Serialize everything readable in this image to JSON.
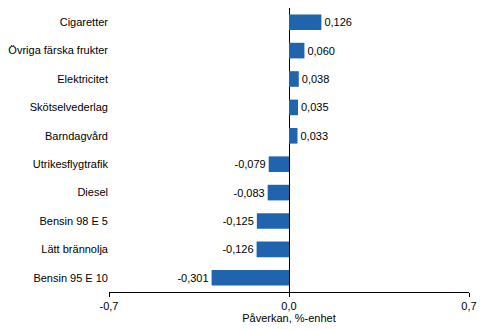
{
  "chart_data": {
    "type": "bar",
    "orientation": "horizontal",
    "x_label": "Påverkan, %-enhet",
    "categories": [
      "Cigaretter",
      "Övriga färska frukter",
      "Elektricitet",
      "Skötselvederlag",
      "Barndagvård",
      "Utrikesflygtrafik",
      "Diesel",
      "Bensin 98 E 5",
      "Lätt brännolja",
      "Bensin 95 E 10"
    ],
    "values": [
      0.126,
      0.06,
      0.038,
      0.035,
      0.033,
      -0.079,
      -0.083,
      -0.125,
      -0.126,
      -0.301
    ],
    "value_labels": [
      "0,126",
      "0,060",
      "0,038",
      "0,035",
      "0,033",
      "-0,079",
      "-0,083",
      "-0,125",
      "-0,126",
      "-0,301"
    ],
    "data_labels": true,
    "color": "#2064ae",
    "xlim": [
      -0.7,
      0.7
    ],
    "xticks": [
      {
        "value": -0.7,
        "label": "-0,7"
      },
      {
        "value": 0,
        "label": "0,0"
      },
      {
        "value": 0.7,
        "label": "0,7"
      }
    ],
    "grid": true
  }
}
